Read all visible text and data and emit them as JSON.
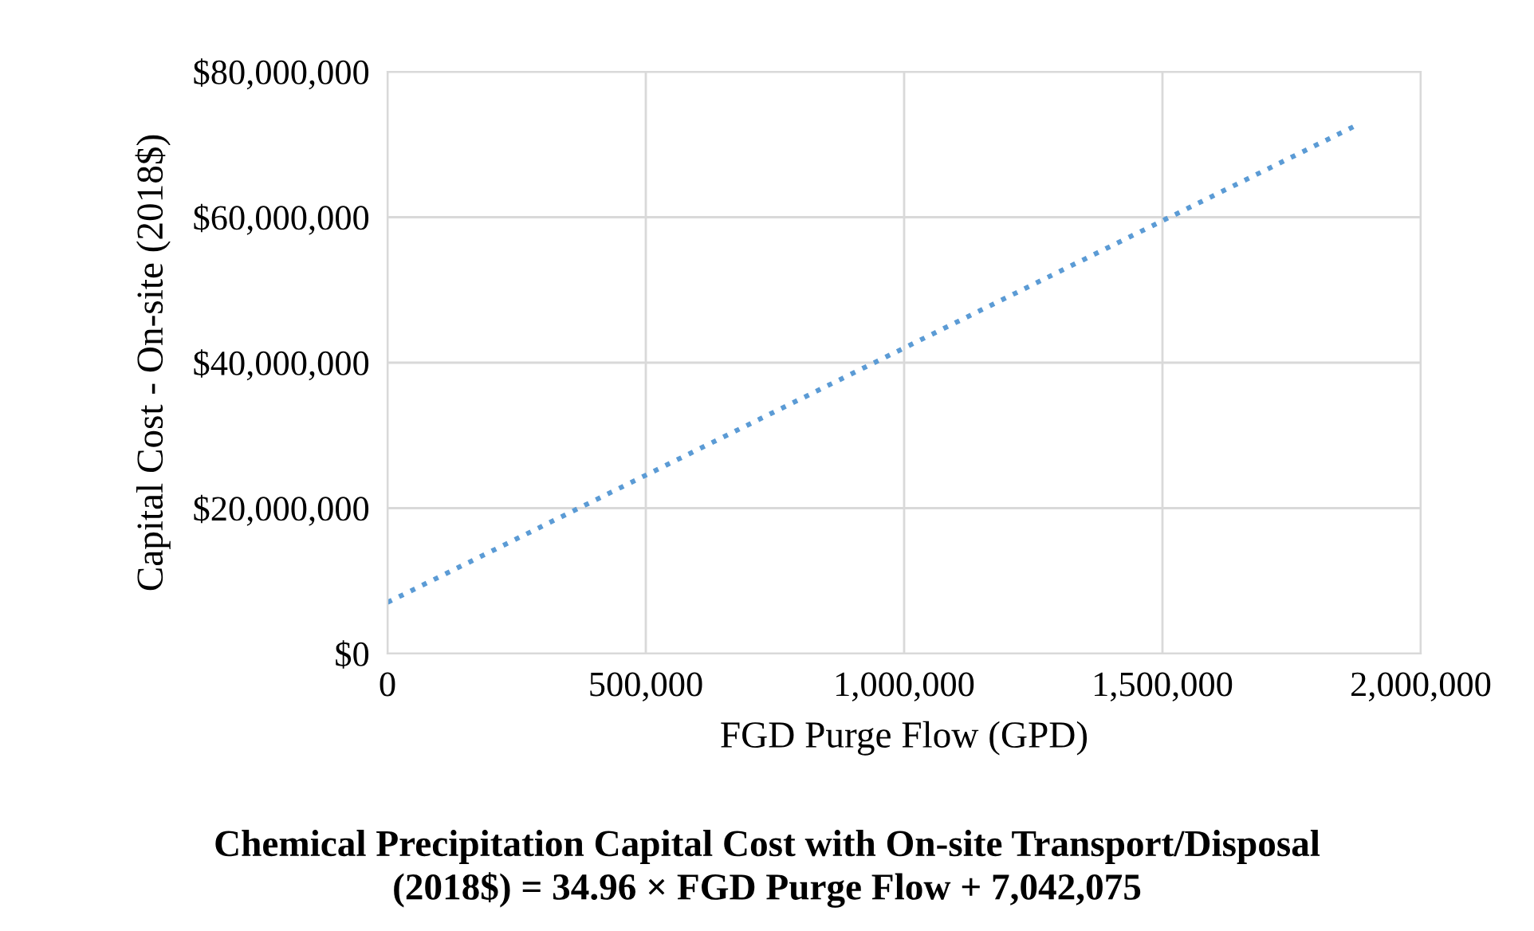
{
  "chart_data": {
    "type": "line",
    "title": "Chemical Precipitation Capital Cost with On-site Transport/Disposal\n(2018$) = 34.96 × FGD Purge Flow + 7,042,075",
    "xlabel": "FGD Purge Flow (GPD)",
    "ylabel": "Capital Cost - On-site (2018$)",
    "x": [
      0,
      1880000
    ],
    "series": [
      {
        "color": "#5b9bd5",
        "values": [
          7042075,
          72800000
        ]
      }
    ],
    "xlim": [
      0,
      2000000
    ],
    "xticks": [
      {
        "value": 0,
        "label": "0"
      },
      {
        "value": 500000,
        "label": "500,000"
      },
      {
        "value": 1000000,
        "label": "1,000,000"
      },
      {
        "value": 1500000,
        "label": "1,500,000"
      },
      {
        "value": 2000000,
        "label": "2,000,000"
      }
    ],
    "ylim": [
      0,
      80000000
    ],
    "yticks": [
      {
        "value": 0,
        "label": "$0"
      },
      {
        "value": 20000000,
        "label": "$20,000,000"
      },
      {
        "value": 40000000,
        "label": "$40,000,000"
      },
      {
        "value": 60000000,
        "label": "$60,000,000"
      },
      {
        "value": 80000000,
        "label": "$80,000,000"
      }
    ],
    "grid": true,
    "line_style": "dotted",
    "marker": "none",
    "legend": false
  }
}
